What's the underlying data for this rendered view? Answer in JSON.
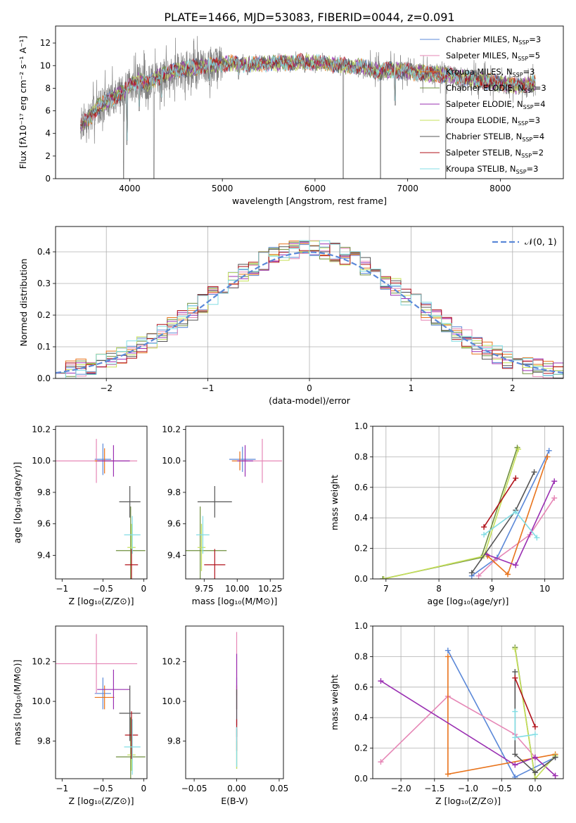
{
  "figure": {
    "title": "PLATE=1466, MJD=53083, FIBERID=0044, z=0.091"
  },
  "models": [
    {
      "name": "Chabrier MILES",
      "color": "#5b88d8",
      "nssp": 3
    },
    {
      "name": "Salpeter MILES",
      "color": "#e687b6",
      "nssp": 5
    },
    {
      "name": "Kroupa MILES",
      "color": "#e8731b",
      "nssp": 3
    },
    {
      "name": "Chabrier ELODIE",
      "color": "#6f8f3e",
      "nssp": 3
    },
    {
      "name": "Salpeter ELODIE",
      "color": "#9a2fb2",
      "nssp": 4
    },
    {
      "name": "Kroupa ELODIE",
      "color": "#c6e05a",
      "nssp": 3
    },
    {
      "name": "Chabrier STELIB",
      "color": "#555555",
      "nssp": 4
    },
    {
      "name": "Salpeter STELIB",
      "color": "#b0121a",
      "nssp": 2
    },
    {
      "name": "Kroupa STELIB",
      "color": "#82dde4",
      "nssp": 3
    }
  ],
  "legend_text": {
    "nssp_prefix": "N",
    "nssp_sub": "SSP",
    "gauss_label": "𝒩(0, 1)"
  },
  "chart_data": [
    {
      "id": "spectrum",
      "type": "line",
      "xlabel": "wavelength [Angstrom, rest frame]",
      "ylabel": "Flux [fλ10⁻¹⁷ erg cm⁻² s⁻¹ A⁻¹]",
      "xlim": [
        3200,
        8680
      ],
      "ylim": [
        0,
        13.5
      ],
      "xticks": [
        4000,
        5000,
        6000,
        7000,
        8000
      ],
      "yticks": [
        0,
        2,
        4,
        6,
        8,
        10,
        12
      ],
      "x_range": [
        3470,
        8380
      ],
      "legend_position": "upper right",
      "observed_color": "#808080",
      "continuum_points": [
        [
          3470,
          4.8
        ],
        [
          3550,
          5.2
        ],
        [
          3650,
          6.3
        ],
        [
          3750,
          6.8
        ],
        [
          3850,
          7.3
        ],
        [
          3950,
          7.8
        ],
        [
          4000,
          8.2
        ],
        [
          4100,
          8.7
        ],
        [
          4200,
          8.4
        ],
        [
          4300,
          9.0
        ],
        [
          4400,
          9.3
        ],
        [
          4500,
          9.6
        ],
        [
          4600,
          9.7
        ],
        [
          4700,
          9.8
        ],
        [
          4800,
          10.0
        ],
        [
          4900,
          10.0
        ],
        [
          5000,
          10.2
        ],
        [
          5100,
          10.2
        ],
        [
          5200,
          10.2
        ],
        [
          5300,
          10.1
        ],
        [
          5500,
          10.2
        ],
        [
          5700,
          10.3
        ],
        [
          5900,
          10.3
        ],
        [
          6100,
          10.2
        ],
        [
          6300,
          10.0
        ],
        [
          6500,
          9.9
        ],
        [
          6700,
          9.4
        ],
        [
          6800,
          9.6
        ],
        [
          7000,
          9.5
        ],
        [
          7200,
          9.3
        ],
        [
          7400,
          9.2
        ],
        [
          7600,
          8.9
        ],
        [
          7800,
          8.7
        ],
        [
          8000,
          8.4
        ],
        [
          8200,
          8.2
        ],
        [
          8380,
          8.5
        ]
      ],
      "absorption_dips": [
        [
          3934,
          0.0
        ],
        [
          3969,
          3.0
        ],
        [
          4102,
          6.0
        ],
        [
          4227,
          7.5
        ],
        [
          4261,
          0.0
        ],
        [
          4341,
          6.8
        ],
        [
          4861,
          8.3
        ],
        [
          5175,
          8.8
        ],
        [
          5270,
          9.2
        ],
        [
          5890,
          9.4
        ],
        [
          6305,
          0.0
        ],
        [
          6563,
          9.0
        ],
        [
          6707,
          0.0
        ],
        [
          6865,
          6.5
        ],
        [
          7410,
          0.0
        ],
        [
          7600,
          8.0
        ]
      ]
    },
    {
      "id": "residuals",
      "type": "histogram",
      "xlabel": "(data-model)/error",
      "ylabel": "Normed distribution",
      "xlim": [
        -2.5,
        2.5
      ],
      "ylim": [
        0,
        0.48
      ],
      "xticks": [
        -2,
        -1,
        0,
        1,
        2
      ],
      "yticks": [
        0.0,
        0.1,
        0.2,
        0.3,
        0.4
      ],
      "bin_width": 0.1,
      "grid": true,
      "legend_position": "upper right"
    },
    {
      "id": "age_vs_Z",
      "type": "errorbar",
      "xlabel": "Z [log₁₀(Z/Z⊙)]",
      "ylabel": "age  [log₁₀(age/yr)]",
      "xlim": [
        -1.08,
        0.04
      ],
      "ylim": [
        9.25,
        10.22
      ],
      "xticks": [
        -1,
        -0.5,
        0
      ],
      "yticks": [
        9.4,
        9.6,
        9.8,
        10.0,
        10.2
      ],
      "points": [
        {
          "model": 0,
          "x": -0.5,
          "xerr": 0.1,
          "y": 10.01,
          "yerr": 0.1
        },
        {
          "model": 1,
          "x": -0.58,
          "xerr": 0.5,
          "y": 10.0,
          "yerr": 0.14
        },
        {
          "model": 2,
          "x": -0.48,
          "xerr": 0.12,
          "y": 10.0,
          "yerr": 0.08
        },
        {
          "model": 3,
          "x": -0.16,
          "xerr": 0.18,
          "y": 9.43,
          "yerr": 0.28
        },
        {
          "model": 4,
          "x": -0.37,
          "xerr": 0.2,
          "y": 10.0,
          "yerr": 0.1
        },
        {
          "model": 5,
          "x": -0.15,
          "xerr": 0.05,
          "y": 9.45,
          "yerr": 0.15
        },
        {
          "model": 6,
          "x": -0.17,
          "xerr": 0.13,
          "y": 9.74,
          "yerr": 0.1
        },
        {
          "model": 7,
          "x": -0.15,
          "xerr": 0.08,
          "y": 9.34,
          "yerr": 0.1
        },
        {
          "model": 8,
          "x": -0.14,
          "xerr": 0.1,
          "y": 9.53,
          "yerr": 0.12
        }
      ]
    },
    {
      "id": "age_vs_mass",
      "type": "errorbar",
      "xlabel": "mass [log₁₀(M/M⊙)]",
      "ylabel": "",
      "xlim": [
        9.61,
        10.35
      ],
      "ylim": [
        9.25,
        10.22
      ],
      "xticks": [
        9.75,
        10.0,
        10.25
      ],
      "xticklabels": [
        "9.75",
        "10.00",
        "10.25"
      ],
      "yticks": [
        9.4,
        9.6,
        9.8,
        10.0,
        10.2
      ],
      "points": [
        {
          "model": 0,
          "x": 10.04,
          "xerr": 0.1,
          "y": 10.01,
          "yerr": 0.08
        },
        {
          "model": 1,
          "x": 10.19,
          "xerr": 0.15,
          "y": 10.0,
          "yerr": 0.14
        },
        {
          "model": 2,
          "x": 10.02,
          "xerr": 0.06,
          "y": 10.0,
          "yerr": 0.06
        },
        {
          "model": 3,
          "x": 9.72,
          "xerr": 0.2,
          "y": 9.43,
          "yerr": 0.28
        },
        {
          "model": 4,
          "x": 10.06,
          "xerr": 0.06,
          "y": 10.0,
          "yerr": 0.1
        },
        {
          "model": 5,
          "x": 9.73,
          "xerr": 0.03,
          "y": 9.45,
          "yerr": 0.15
        },
        {
          "model": 6,
          "x": 9.83,
          "xerr": 0.13,
          "y": 9.74,
          "yerr": 0.1
        },
        {
          "model": 7,
          "x": 9.83,
          "xerr": 0.08,
          "y": 9.34,
          "yerr": 0.1
        },
        {
          "model": 8,
          "x": 9.74,
          "xerr": 0.05,
          "y": 9.53,
          "yerr": 0.12
        }
      ]
    },
    {
      "id": "weight_vs_age",
      "type": "line",
      "xlabel": "age  [log₁₀(age/yr)]",
      "ylabel": "mass weight",
      "xlim": [
        6.75,
        10.35
      ],
      "ylim": [
        0,
        1.0
      ],
      "xticks": [
        7,
        8,
        9,
        10
      ],
      "yticks": [
        0.0,
        0.2,
        0.4,
        0.6,
        0.8,
        1.0
      ],
      "grid": true,
      "series": [
        {
          "model": 0,
          "points": [
            [
              8.62,
              0.02
            ],
            [
              9.1,
              0.14
            ],
            [
              10.08,
              0.84
            ]
          ]
        },
        {
          "model": 1,
          "points": [
            [
              8.75,
              0.02
            ],
            [
              9.05,
              0.12
            ],
            [
              9.72,
              0.29
            ],
            [
              10.18,
              0.53
            ]
          ]
        },
        {
          "model": 2,
          "points": [
            [
              8.92,
              0.15
            ],
            [
              9.3,
              0.03
            ],
            [
              10.05,
              0.8
            ]
          ]
        },
        {
          "model": 3,
          "points": [
            [
              6.94,
              0.0
            ],
            [
              8.8,
              0.14
            ],
            [
              9.48,
              0.86
            ]
          ]
        },
        {
          "model": 4,
          "points": [
            [
              8.9,
              0.16
            ],
            [
              9.45,
              0.09
            ],
            [
              10.18,
              0.64
            ]
          ]
        },
        {
          "model": 5,
          "points": [
            [
              6.96,
              0.0
            ],
            [
              8.85,
              0.15
            ],
            [
              9.5,
              0.85
            ]
          ]
        },
        {
          "model": 6,
          "points": [
            [
              8.62,
              0.04
            ],
            [
              9.45,
              0.45
            ],
            [
              9.8,
              0.7
            ]
          ]
        },
        {
          "model": 7,
          "points": [
            [
              8.85,
              0.34
            ],
            [
              9.45,
              0.66
            ]
          ]
        },
        {
          "model": 8,
          "points": [
            [
              8.85,
              0.29
            ],
            [
              9.45,
              0.44
            ],
            [
              9.85,
              0.27
            ]
          ]
        }
      ]
    },
    {
      "id": "mass_vs_Z",
      "type": "errorbar",
      "xlabel": "Z [log₁₀(Z/Z⊙)]",
      "ylabel": "mass [log₁₀(M/M⊙)]",
      "xlim": [
        -1.08,
        0.04
      ],
      "ylim": [
        9.61,
        10.38
      ],
      "xticks": [
        -1,
        -0.5,
        0
      ],
      "yticks": [
        9.8,
        10.0,
        10.2
      ],
      "points": [
        {
          "model": 0,
          "x": -0.5,
          "xerr": 0.1,
          "y": 10.04,
          "yerr": 0.08
        },
        {
          "model": 1,
          "x": -0.58,
          "xerr": 0.5,
          "y": 10.19,
          "yerr": 0.15
        },
        {
          "model": 2,
          "x": -0.48,
          "xerr": 0.12,
          "y": 10.02,
          "yerr": 0.06
        },
        {
          "model": 3,
          "x": -0.16,
          "xerr": 0.18,
          "y": 9.72,
          "yerr": 0.2
        },
        {
          "model": 4,
          "x": -0.37,
          "xerr": 0.2,
          "y": 10.06,
          "yerr": 0.1
        },
        {
          "model": 5,
          "x": -0.15,
          "xerr": 0.05,
          "y": 9.73,
          "yerr": 0.08
        },
        {
          "model": 6,
          "x": -0.17,
          "xerr": 0.13,
          "y": 9.94,
          "yerr": 0.14
        },
        {
          "model": 7,
          "x": -0.15,
          "xerr": 0.08,
          "y": 9.83,
          "yerr": 0.12
        },
        {
          "model": 8,
          "x": -0.14,
          "xerr": 0.1,
          "y": 9.77,
          "yerr": 0.14
        }
      ]
    },
    {
      "id": "mass_vs_EBV",
      "type": "errorbar",
      "xlabel": "E(B-V)",
      "ylabel": "",
      "xlim": [
        -0.06,
        0.055
      ],
      "ylim": [
        9.61,
        10.38
      ],
      "xticks": [
        -0.05,
        0.0,
        0.05
      ],
      "xticklabels": [
        "−0.05",
        "0.00",
        "0.05"
      ],
      "yticks": [
        9.8,
        10.0,
        10.2
      ],
      "points": [
        {
          "model": 0,
          "x": 0.0,
          "xerr": 0.0,
          "y": 10.04,
          "yerr": 0.08
        },
        {
          "model": 1,
          "x": 0.0,
          "xerr": 0.0,
          "y": 10.19,
          "yerr": 0.16
        },
        {
          "model": 2,
          "x": 0.0,
          "xerr": 0.0,
          "y": 10.02,
          "yerr": 0.06
        },
        {
          "model": 3,
          "x": 0.0,
          "xerr": 0.0,
          "y": 9.76,
          "yerr": 0.1
        },
        {
          "model": 4,
          "x": 0.0,
          "xerr": 0.0,
          "y": 10.06,
          "yerr": 0.18
        },
        {
          "model": 5,
          "x": 0.0,
          "xerr": 0.0,
          "y": 9.73,
          "yerr": 0.07
        },
        {
          "model": 6,
          "x": 0.0,
          "xerr": 0.0,
          "y": 9.94,
          "yerr": 0.12
        },
        {
          "model": 7,
          "x": 0.0,
          "xerr": 0.0,
          "y": 9.83,
          "yerr": 0.08
        },
        {
          "model": 8,
          "x": 0.0,
          "xerr": 0.0,
          "y": 9.77,
          "yerr": 0.1
        }
      ]
    },
    {
      "id": "weight_vs_Z",
      "type": "line",
      "xlabel": "Z [log₁₀(Z/Z⊙)]",
      "ylabel": "mass weight",
      "xlim": [
        -2.42,
        0.42
      ],
      "ylim": [
        0,
        1.0
      ],
      "xticks": [
        -2.0,
        -1.5,
        -1.0,
        -0.5,
        0.0
      ],
      "xticklabels": [
        "−2.0",
        "−1.5",
        "−1.0",
        "−0.5",
        "0.0"
      ],
      "yticks": [
        0.0,
        0.2,
        0.4,
        0.6,
        0.8,
        1.0
      ],
      "grid": true,
      "series": [
        {
          "model": 0,
          "points": [
            [
              -1.3,
              0.84
            ],
            [
              -0.3,
              0.01
            ],
            [
              0.3,
              0.14
            ]
          ]
        },
        {
          "model": 1,
          "points": [
            [
              -2.3,
              0.11
            ],
            [
              -1.3,
              0.54
            ],
            [
              -0.3,
              0.29
            ],
            [
              0.0,
              0.14
            ],
            [
              0.3,
              0.02
            ]
          ]
        },
        {
          "model": 2,
          "points": [
            [
              -1.3,
              0.8
            ],
            [
              -1.3,
              0.03
            ],
            [
              0.3,
              0.16
            ]
          ]
        },
        {
          "model": 3,
          "points": [
            [
              -0.3,
              0.86
            ],
            [
              0.0,
              0.0
            ]
          ]
        },
        {
          "model": 4,
          "points": [
            [
              -2.3,
              0.64
            ],
            [
              -0.3,
              0.09
            ],
            [
              0.0,
              0.14
            ],
            [
              0.3,
              0.02
            ]
          ]
        },
        {
          "model": 5,
          "points": [
            [
              -0.3,
              0.85
            ],
            [
              0.0,
              0.0
            ],
            [
              0.3,
              0.15
            ]
          ]
        },
        {
          "model": 6,
          "points": [
            [
              -0.3,
              0.7
            ],
            [
              -0.3,
              0.16
            ],
            [
              0.0,
              0.04
            ],
            [
              0.3,
              0.14
            ]
          ]
        },
        {
          "model": 7,
          "points": [
            [
              -0.3,
              0.66
            ],
            [
              0.0,
              0.34
            ]
          ]
        },
        {
          "model": 8,
          "points": [
            [
              -0.3,
              0.44
            ],
            [
              -0.3,
              0.27
            ],
            [
              0.0,
              0.29
            ]
          ]
        }
      ]
    }
  ]
}
